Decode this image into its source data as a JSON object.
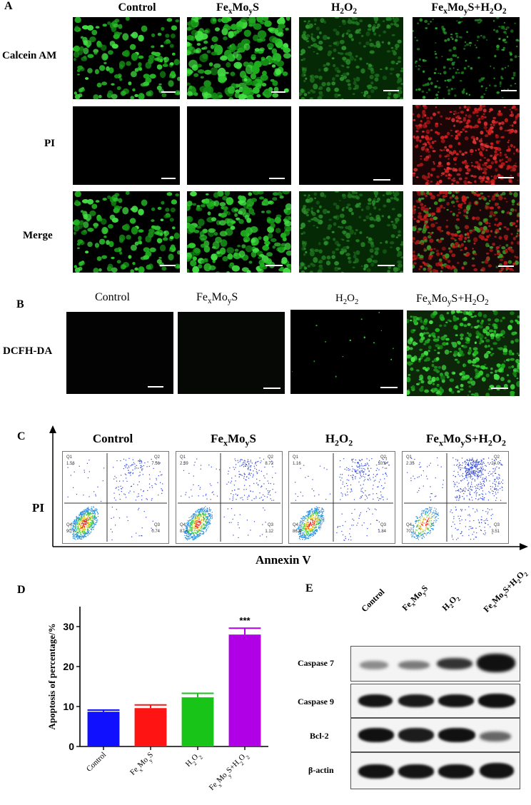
{
  "panelA": {
    "label": "A",
    "columns": [
      "Control",
      "FexMoyS",
      "H2O2",
      "FexMoyS+H2O2"
    ],
    "rows": [
      "Calcein AM",
      "PI",
      "Merge"
    ]
  },
  "panelB": {
    "label": "B",
    "columns": [
      "Control",
      "FexMoyS",
      "H2O2",
      "FexMoyS+H2O2"
    ],
    "row": "DCFH-DA"
  },
  "panelC": {
    "label": "C",
    "columns": [
      "Control",
      "FexMoyS",
      "H2O2",
      "FexMoyS+H2O2"
    ],
    "ylabel": "PI",
    "xlabel": "Annexin V",
    "quadrants": [
      {
        "Q1": "1.56",
        "Q2": "7.56",
        "Q3": "0.74",
        "Q4": "90.1"
      },
      {
        "Q1": "2.59",
        "Q2": "8.72",
        "Q3": "1.12",
        "Q4": "87.6"
      },
      {
        "Q1": "1.16",
        "Q2": "10.6",
        "Q3": "1.84",
        "Q4": "86.4"
      },
      {
        "Q1": "2.35",
        "Q2": "24.0",
        "Q3": "3.51",
        "Q4": "70.1"
      }
    ],
    "quadrant_names": [
      "Q1",
      "Q2",
      "Q3",
      "Q4"
    ]
  },
  "chart_data": {
    "type": "bar",
    "title": "",
    "panel_label": "D",
    "categories": [
      "Control",
      "FexMoyS",
      "H2O2",
      "FexMoyS+H2O2"
    ],
    "values": [
      8.7,
      9.6,
      12.3,
      28.0
    ],
    "errors": [
      0.4,
      0.8,
      1.0,
      1.6
    ],
    "colors": [
      "#1010ff",
      "#ff1414",
      "#19c419",
      "#b000e6"
    ],
    "significance": [
      "",
      "",
      "",
      "***"
    ],
    "xlabel": "",
    "ylabel": "Apoptosis of percentage/%",
    "ylim": [
      0,
      35
    ],
    "yticks": [
      0,
      10,
      20,
      30
    ]
  },
  "panelE": {
    "label": "E",
    "lanes": [
      "Control",
      "FexMoyS",
      "H2O2",
      "FexMoyS+H2O2"
    ],
    "proteins": [
      "Caspase 7",
      "Caspase 9",
      "Bcl-2",
      "β-actin"
    ]
  }
}
